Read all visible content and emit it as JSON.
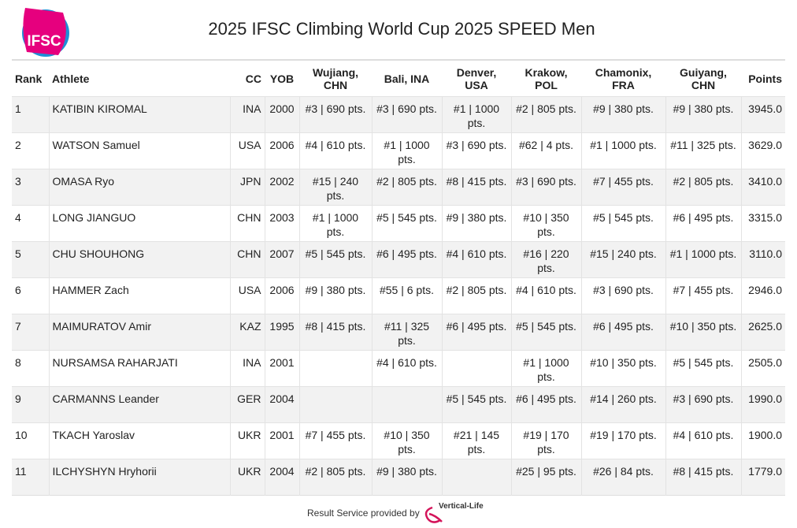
{
  "header": {
    "logo": "IFSC",
    "title": "2025 IFSC Climbing World Cup 2025 SPEED Men"
  },
  "table": {
    "columns": [
      "Rank",
      "Athlete",
      "CC",
      "YOB",
      "Wujiang, CHN",
      "Bali, INA",
      "Denver, USA",
      "Krakow, POL",
      "Chamonix, FRA",
      "Guiyang, CHN",
      "Points"
    ],
    "rows": [
      [
        "1",
        "KATIBIN KIROMAL",
        "INA",
        "2000",
        "#3 | 690 pts.",
        "#3 | 690 pts.",
        "#1 | 1000 pts.",
        "#2 | 805 pts.",
        "#9 | 380 pts.",
        "#9 | 380 pts.",
        "3945.0"
      ],
      [
        "2",
        "WATSON Samuel",
        "USA",
        "2006",
        "#4 | 610 pts.",
        "#1 | 1000 pts.",
        "#3 | 690 pts.",
        "#62 | 4 pts.",
        "#1 | 1000 pts.",
        "#11 | 325 pts.",
        "3629.0"
      ],
      [
        "3",
        "OMASA Ryo",
        "JPN",
        "2002",
        "#15 | 240 pts.",
        "#2 | 805 pts.",
        "#8 | 415 pts.",
        "#3 | 690 pts.",
        "#7 | 455 pts.",
        "#2 | 805 pts.",
        "3410.0"
      ],
      [
        "4",
        "LONG JIANGUO",
        "CHN",
        "2003",
        "#1 | 1000 pts.",
        "#5 | 545 pts.",
        "#9 | 380 pts.",
        "#10 | 350 pts.",
        "#5 | 545 pts.",
        "#6 | 495 pts.",
        "3315.0"
      ],
      [
        "5",
        "CHU SHOUHONG",
        "CHN",
        "2007",
        "#5 | 545 pts.",
        "#6 | 495 pts.",
        "#4 | 610 pts.",
        "#16 | 220 pts.",
        "#15 | 240 pts.",
        "#1 | 1000 pts.",
        "3110.0"
      ],
      [
        "6",
        "HAMMER Zach",
        "USA",
        "2006",
        "#9 | 380 pts.",
        "#55 | 6 pts.",
        "#2 | 805 pts.",
        "#4 | 610 pts.",
        "#3 | 690 pts.",
        "#7 | 455 pts.",
        "2946.0"
      ],
      [
        "7",
        "MAIMURATOV Amir",
        "KAZ",
        "1995",
        "#8 | 415 pts.",
        "#11 | 325 pts.",
        "#6 | 495 pts.",
        "#5 | 545 pts.",
        "#6 | 495 pts.",
        "#10 | 350 pts.",
        "2625.0"
      ],
      [
        "8",
        "NURSAMSA RAHARJATI",
        "INA",
        "2001",
        null,
        "#4 | 610 pts.",
        null,
        "#1 | 1000 pts.",
        "#10 | 350 pts.",
        "#5 | 545 pts.",
        "2505.0"
      ],
      [
        "9",
        "CARMANNS Leander",
        "GER",
        "2004",
        null,
        null,
        "#5 | 545 pts.",
        "#6 | 495 pts.",
        "#14 | 260 pts.",
        "#3 | 690 pts.",
        "1990.0"
      ],
      [
        "10",
        "TKACH Yaroslav",
        "UKR",
        "2001",
        "#7 | 455 pts.",
        "#10 | 350 pts.",
        "#21 | 145 pts.",
        "#19 | 170 pts.",
        "#19 | 170 pts.",
        "#4 | 610 pts.",
        "1900.0"
      ],
      [
        "11",
        "ILCHYSHYN Hryhorii",
        "UKR",
        "2004",
        "#2 | 805 pts.",
        "#9 | 380 pts.",
        null,
        "#25 | 95 pts.",
        "#26 | 84 pts.",
        "#8 | 415 pts.",
        "1779.0"
      ]
    ]
  },
  "footer": {
    "text": "Result Service provided by",
    "brand": "Vertical-Life"
  }
}
